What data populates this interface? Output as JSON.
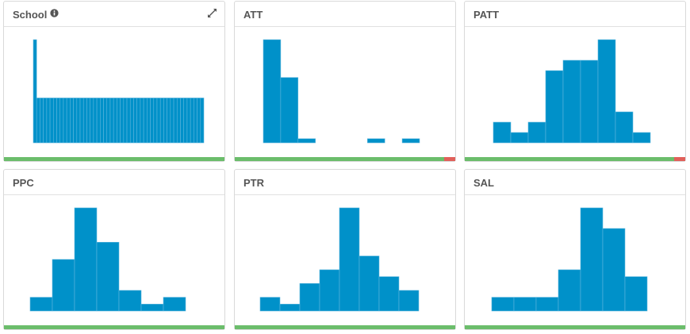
{
  "colors": {
    "bar": "#0091c9",
    "ok": "#6bbd6b",
    "alert": "#e0605a"
  },
  "panels": [
    {
      "title": "School",
      "info_icon": "info-circle-icon",
      "expand_icon": "expand-arrows-icon",
      "status": {
        "ok_fraction": 1.0
      }
    },
    {
      "title": "ATT",
      "status": {
        "ok_fraction": 0.95
      }
    },
    {
      "title": "PATT",
      "status": {
        "ok_fraction": 0.95
      }
    },
    {
      "title": "PPC",
      "status": {
        "ok_fraction": 1.0
      }
    },
    {
      "title": "PTR",
      "status": {
        "ok_fraction": 1.0
      }
    },
    {
      "title": "SAL",
      "status": {
        "ok_fraction": 1.0
      }
    }
  ],
  "chart_data": [
    {
      "type": "bar",
      "title": "School",
      "values": [
        2.3,
        1,
        1,
        1,
        1,
        1,
        1,
        1,
        1,
        1,
        1,
        1,
        1,
        1,
        1,
        1,
        1,
        1,
        1,
        1,
        1,
        1,
        1,
        1,
        1,
        1,
        1,
        1,
        1,
        1,
        1,
        1,
        1,
        1,
        1,
        1,
        1,
        1,
        1,
        1,
        1,
        1,
        1,
        1,
        1,
        1,
        1,
        1,
        1,
        1,
        1
      ],
      "ylim": [
        0,
        2.3
      ]
    },
    {
      "type": "bar",
      "title": "ATT",
      "values": [
        30,
        19,
        1.2,
        0,
        0,
        0,
        1.2,
        0,
        1.2
      ],
      "ylim": [
        0,
        30
      ]
    },
    {
      "type": "bar",
      "title": "PATT",
      "values": [
        6,
        3,
        6,
        21,
        24,
        24,
        30,
        9,
        3
      ],
      "ylim": [
        0,
        30
      ]
    },
    {
      "type": "bar",
      "title": "PPC",
      "values": [
        4,
        15,
        30,
        20,
        6,
        2,
        4
      ],
      "ylim": [
        0,
        30
      ]
    },
    {
      "type": "bar",
      "title": "PTR",
      "values": [
        4,
        2,
        8,
        12,
        30,
        16,
        10,
        6
      ],
      "ylim": [
        0,
        30
      ]
    },
    {
      "type": "bar",
      "title": "SAL",
      "values": [
        4,
        4,
        4,
        12,
        30,
        24,
        10
      ],
      "ylim": [
        0,
        30
      ]
    }
  ]
}
